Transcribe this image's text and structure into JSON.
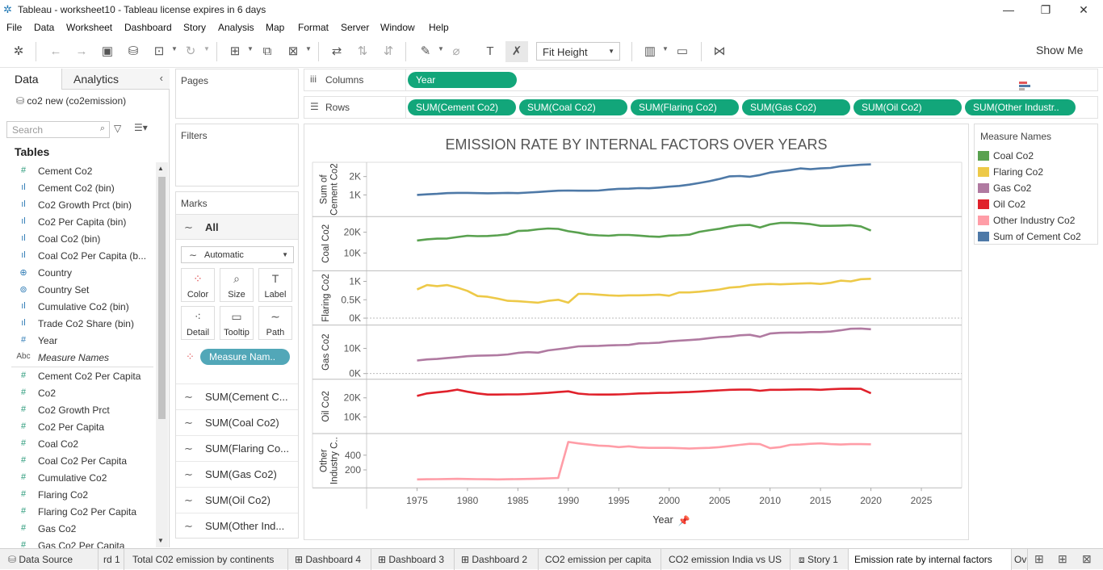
{
  "window": {
    "title": "Tableau - worksheet10 - Tableau license expires in 6 days"
  },
  "menu": [
    "File",
    "Data",
    "Worksheet",
    "Dashboard",
    "Story",
    "Analysis",
    "Map",
    "Format",
    "Server",
    "Window",
    "Help"
  ],
  "toolbar": {
    "fit_label": "Fit Height",
    "show_me_label": "Show Me"
  },
  "left_pane": {
    "tab_data": "Data",
    "tab_analytics": "Analytics",
    "datasource": "co2 new (co2emission)",
    "search_placeholder": "Search",
    "tables_heading": "Tables",
    "fields": [
      {
        "name": "Cement Co2",
        "icon": "#",
        "kind": "measure"
      },
      {
        "name": "Cement Co2 (bin)",
        "icon": "bin",
        "kind": "dim"
      },
      {
        "name": "Co2 Growth Prct (bin)",
        "icon": "bin",
        "kind": "dim"
      },
      {
        "name": "Co2 Per Capita (bin)",
        "icon": "bin",
        "kind": "dim"
      },
      {
        "name": "Coal Co2 (bin)",
        "icon": "bin",
        "kind": "dim"
      },
      {
        "name": "Coal Co2 Per Capita (b...",
        "icon": "bin",
        "kind": "dim"
      },
      {
        "name": "Country",
        "icon": "globe",
        "kind": "dim"
      },
      {
        "name": "Country Set",
        "icon": "set",
        "kind": "dim"
      },
      {
        "name": "Cumulative Co2 (bin)",
        "icon": "bin",
        "kind": "dim"
      },
      {
        "name": "Trade Co2 Share (bin)",
        "icon": "bin",
        "kind": "dim"
      },
      {
        "name": "Year",
        "icon": "#",
        "kind": "dim"
      },
      {
        "name": "Measure Names",
        "icon": "Abc",
        "kind": "dim",
        "italic": true
      },
      {
        "name": "Cement Co2 Per Capita",
        "icon": "#",
        "kind": "measure"
      },
      {
        "name": "Co2",
        "icon": "#",
        "kind": "measure"
      },
      {
        "name": "Co2 Growth Prct",
        "icon": "#",
        "kind": "measure"
      },
      {
        "name": "Co2 Per Capita",
        "icon": "#",
        "kind": "measure"
      },
      {
        "name": "Coal Co2",
        "icon": "#",
        "kind": "measure"
      },
      {
        "name": "Coal Co2 Per Capita",
        "icon": "#",
        "kind": "measure"
      },
      {
        "name": "Cumulative Co2",
        "icon": "#",
        "kind": "measure"
      },
      {
        "name": "Flaring Co2",
        "icon": "#",
        "kind": "measure"
      },
      {
        "name": "Flaring Co2 Per Capita",
        "icon": "#",
        "kind": "measure"
      },
      {
        "name": "Gas Co2",
        "icon": "#",
        "kind": "measure"
      },
      {
        "name": "Gas Co2 Per Capita",
        "icon": "#",
        "kind": "measure"
      }
    ]
  },
  "shelves": {
    "pages": "Pages",
    "filters": "Filters",
    "columns_label": "Columns",
    "rows_label": "Rows",
    "columns_pills": [
      "Year"
    ],
    "rows_pills": [
      "SUM(Cement Co2)",
      "SUM(Coal Co2)",
      "SUM(Flaring Co2)",
      "SUM(Gas Co2)",
      "SUM(Oil Co2)",
      "SUM(Other Industr.."
    ]
  },
  "marks": {
    "heading": "Marks",
    "all_label": "All",
    "mark_type": "Automatic",
    "buttons": [
      "Color",
      "Size",
      "Label",
      "Detail",
      "Tooltip",
      "Path"
    ],
    "color_pill": "Measure Nam..",
    "rows": [
      "SUM(Cement C...",
      "SUM(Coal Co2)",
      "SUM(Flaring Co...",
      "SUM(Gas Co2)",
      "SUM(Oil Co2)",
      "SUM(Other Ind..."
    ]
  },
  "legend": {
    "title": "Measure Names",
    "items": [
      {
        "name": "Coal Co2",
        "color": "#59a14f"
      },
      {
        "name": "Flaring Co2",
        "color": "#edc948"
      },
      {
        "name": "Gas Co2",
        "color": "#b07aa1"
      },
      {
        "name": "Oil Co2",
        "color": "#e0212b"
      },
      {
        "name": "Other Industry Co2",
        "color": "#ff9da7"
      },
      {
        "name": "Sum of Cement Co2",
        "color": "#4e79a7"
      }
    ]
  },
  "chart_data": {
    "type": "line",
    "title": "EMISSION RATE BY INTERNAL FACTORS OVER YEARS",
    "xlabel": "Year",
    "xlim": [
      1970,
      2029
    ],
    "x_ticks": [
      1975,
      1980,
      1985,
      1990,
      1995,
      2000,
      2005,
      2010,
      2015,
      2020,
      2025
    ],
    "x": [
      1975,
      1976,
      1977,
      1978,
      1979,
      1980,
      1981,
      1982,
      1983,
      1984,
      1985,
      1986,
      1987,
      1988,
      1989,
      1990,
      1991,
      1992,
      1993,
      1994,
      1995,
      1996,
      1997,
      1998,
      1999,
      2000,
      2001,
      2002,
      2003,
      2004,
      2005,
      2006,
      2007,
      2008,
      2009,
      2010,
      2011,
      2012,
      2013,
      2014,
      2015,
      2016,
      2017,
      2018,
      2019,
      2020
    ],
    "panels": [
      {
        "ylabel": "Sum of Cement Co2",
        "name": "Sum of Cement Co2",
        "color": "#4e79a7",
        "ylim": [
          0,
          2600
        ],
        "y_ticks": [
          {
            "v": 1000,
            "t": "1K"
          },
          {
            "v": 2000,
            "t": "2K"
          }
        ],
        "values": [
          1000,
          1030,
          1060,
          1100,
          1110,
          1110,
          1100,
          1090,
          1100,
          1110,
          1100,
          1130,
          1160,
          1200,
          1230,
          1240,
          1230,
          1230,
          1240,
          1290,
          1330,
          1340,
          1370,
          1360,
          1400,
          1450,
          1490,
          1560,
          1650,
          1750,
          1870,
          2010,
          2030,
          1990,
          2080,
          2220,
          2290,
          2350,
          2440,
          2400,
          2440,
          2470,
          2560,
          2600,
          2640,
          2660
        ]
      },
      {
        "ylabel": "Coal Co2",
        "name": "Coal Co2",
        "color": "#59a14f",
        "ylim": [
          3000,
          26000
        ],
        "y_ticks": [
          {
            "v": 10000,
            "t": "10K"
          },
          {
            "v": 20000,
            "t": "20K"
          }
        ],
        "values": [
          16000,
          16600,
          16900,
          17000,
          17700,
          18300,
          18100,
          18200,
          18500,
          19000,
          20600,
          20800,
          21400,
          21800,
          21600,
          20500,
          19800,
          18800,
          18500,
          18300,
          18700,
          18700,
          18400,
          18000,
          17800,
          18400,
          18500,
          18800,
          20200,
          21000,
          21700,
          22700,
          23400,
          23500,
          22300,
          23800,
          24500,
          24500,
          24300,
          23900,
          23100,
          23100,
          23200,
          23400,
          22800,
          20800
        ]
      },
      {
        "ylabel": "Flaring Co2",
        "name": "Flaring Co2",
        "color": "#edc948",
        "ylim": [
          -0.1,
          1.2
        ],
        "y_ticks": [
          {
            "v": 0,
            "t": "0K"
          },
          {
            "v": 0.5,
            "t": "0.5K"
          },
          {
            "v": 1,
            "t": "1K"
          }
        ],
        "values": [
          0.78,
          0.9,
          0.87,
          0.9,
          0.83,
          0.74,
          0.6,
          0.58,
          0.53,
          0.47,
          0.46,
          0.44,
          0.42,
          0.47,
          0.5,
          0.42,
          0.66,
          0.66,
          0.64,
          0.62,
          0.61,
          0.62,
          0.62,
          0.63,
          0.64,
          0.61,
          0.7,
          0.7,
          0.72,
          0.75,
          0.78,
          0.83,
          0.85,
          0.9,
          0.92,
          0.93,
          0.92,
          0.93,
          0.94,
          0.95,
          0.93,
          0.96,
          1.02,
          1.0,
          1.06,
          1.07
        ]
      },
      {
        "ylabel": "Gas Co2",
        "name": "Gas Co2",
        "color": "#b07aa1",
        "ylim": [
          -1000,
          18000
        ],
        "y_ticks": [
          {
            "v": 0,
            "t": "0K"
          },
          {
            "v": 10000,
            "t": "10K"
          }
        ],
        "values": [
          5200,
          5600,
          5800,
          6200,
          6500,
          6900,
          7100,
          7200,
          7300,
          7600,
          8200,
          8500,
          8300,
          9200,
          9700,
          10200,
          10800,
          10900,
          11000,
          11200,
          11300,
          11400,
          12000,
          12100,
          12300,
          12800,
          13100,
          13300,
          13600,
          14100,
          14500,
          14700,
          15200,
          15400,
          14600,
          15900,
          16200,
          16300,
          16300,
          16500,
          16500,
          16700,
          17200,
          17800,
          17900,
          17600
        ]
      },
      {
        "ylabel": "Oil Co2",
        "name": "Oil Co2",
        "color": "#e0212b",
        "ylim": [
          3000,
          28000
        ],
        "y_ticks": [
          {
            "v": 10000,
            "t": "10K"
          },
          {
            "v": 20000,
            "t": "20K"
          }
        ],
        "values": [
          21000,
          22300,
          22900,
          23400,
          24300,
          23200,
          22300,
          21700,
          21700,
          21800,
          21800,
          22000,
          22300,
          22600,
          23000,
          23400,
          22200,
          21800,
          21700,
          21700,
          21800,
          22000,
          22300,
          22400,
          22600,
          22700,
          22900,
          23000,
          23300,
          23600,
          23900,
          24200,
          24300,
          24300,
          23700,
          24200,
          24200,
          24300,
          24400,
          24400,
          24200,
          24500,
          24700,
          24800,
          24700,
          22400
        ]
      },
      {
        "ylabel": "Other Industry C..",
        "name": "Other Industry Co2",
        "color": "#ff9da7",
        "ylim": [
          0,
          650
        ],
        "y_ticks": [
          {
            "v": 200,
            "t": "200"
          },
          {
            "v": 400,
            "t": "400"
          }
        ],
        "values": [
          70,
          72,
          74,
          76,
          78,
          76,
          74,
          72,
          70,
          72,
          75,
          77,
          80,
          85,
          90,
          580,
          560,
          545,
          530,
          525,
          510,
          520,
          505,
          500,
          500,
          500,
          495,
          490,
          495,
          500,
          510,
          525,
          540,
          555,
          550,
          495,
          510,
          540,
          545,
          555,
          560,
          550,
          545,
          550,
          550,
          548
        ]
      }
    ]
  },
  "sheet_tabs": [
    "Data Source",
    "rd 1",
    "Total C02 emission by continents",
    "Dashboard 4",
    "Dashboard 3",
    "Dashboard 2",
    "CO2 emission per capita",
    "CO2 emission India vs US",
    "Story 1",
    "Emission rate by internal factors",
    "Ov"
  ]
}
